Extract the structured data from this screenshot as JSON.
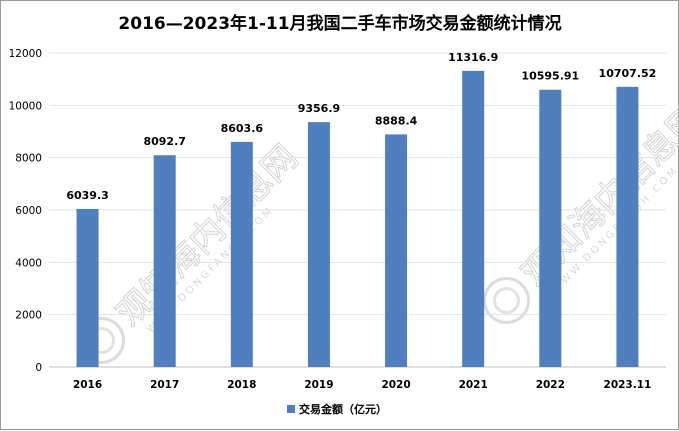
{
  "chart_data": {
    "type": "bar",
    "title": "2016—2023年1-11月我国二手车市场交易金额统计情况",
    "categories": [
      "2016",
      "2017",
      "2018",
      "2019",
      "2020",
      "2021",
      "2022",
      "2023.11"
    ],
    "series": [
      {
        "name": "交易金额（亿元）",
        "values": [
          6039.3,
          8092.7,
          8603.6,
          9356.9,
          8888.4,
          11316.9,
          10595.91,
          10707.52
        ],
        "labels": [
          "6039.3",
          "8092.7",
          "8603.6",
          "9356.9",
          "8888.4",
          "11316.9",
          "10595.91",
          "10707.52"
        ],
        "color": "#4f7fbf"
      }
    ],
    "ylim": [
      0,
      12000
    ],
    "yticks": [
      0,
      2000,
      4000,
      6000,
      8000,
      10000,
      12000
    ],
    "ytick_labels": [
      "0",
      "2000",
      "4000",
      "6000",
      "8000",
      "10000",
      "12000"
    ],
    "grid": true,
    "legend_position": "bottom-center"
  },
  "watermark": {
    "text": "观知海内信息网",
    "subtext": "WWW.DONGFANGH.COM"
  }
}
